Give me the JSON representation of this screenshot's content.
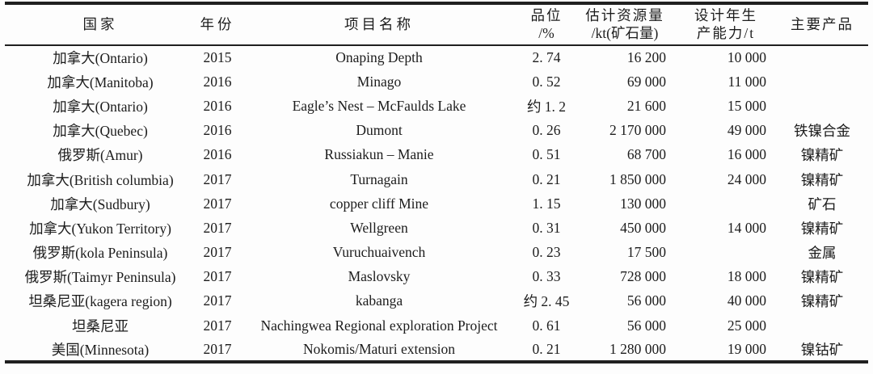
{
  "table": {
    "header": {
      "country": "国家",
      "year": "年份",
      "project": "项目名称",
      "grade_line1": "品位",
      "grade_line2": "/%",
      "resources_line1": "估计资源量",
      "resources_line2": "/kt(矿石量)",
      "capacity_line1": "设计年生",
      "capacity_line2": "产能力/t",
      "product": "主要产品"
    },
    "rows": [
      {
        "country": "加拿大(Ontario)",
        "year": "2015",
        "project": "Onaping Depth",
        "grade": "2. 74",
        "resources": "16 200",
        "capacity": "10 000",
        "product": ""
      },
      {
        "country": "加拿大(Manitoba)",
        "year": "2016",
        "project": "Minago",
        "grade": "0. 52",
        "resources": "69 000",
        "capacity": "11 000",
        "product": ""
      },
      {
        "country": "加拿大(Ontario)",
        "year": "2016",
        "project": "Eagle’s Nest – McFaulds Lake",
        "grade": "约 1. 2",
        "resources": "21 600",
        "capacity": "15 000",
        "product": ""
      },
      {
        "country": "加拿大(Quebec)",
        "year": "2016",
        "project": "Dumont",
        "grade": "0. 26",
        "resources": "2 170 000",
        "capacity": "49 000",
        "product": "铁镍合金"
      },
      {
        "country": "俄罗斯(Amur)",
        "year": "2016",
        "project": "Russiakun – Manie",
        "grade": "0. 51",
        "resources": "68 700",
        "capacity": "16 000",
        "product": "镍精矿"
      },
      {
        "country": "加拿大(British columbia)",
        "year": "2017",
        "project": "Turnagain",
        "grade": "0. 21",
        "resources": "1 850 000",
        "capacity": "24 000",
        "product": "镍精矿"
      },
      {
        "country": "加拿大(Sudbury)",
        "year": "2017",
        "project": "copper cliff Mine",
        "grade": "1. 15",
        "resources": "130 000",
        "capacity": "",
        "product": "矿石"
      },
      {
        "country": "加拿大(Yukon Territory)",
        "year": "2017",
        "project": "Wellgreen",
        "grade": "0. 31",
        "resources": "450 000",
        "capacity": "14 000",
        "product": "镍精矿"
      },
      {
        "country": "俄罗斯(kola Peninsula)",
        "year": "2017",
        "project": "Vuruchuaivench",
        "grade": "0. 23",
        "resources": "17 500",
        "capacity": "",
        "product": "金属"
      },
      {
        "country": "俄罗斯(Taimyr Peninsula)",
        "year": "2017",
        "project": "Maslovsky",
        "grade": "0. 33",
        "resources": "728 000",
        "capacity": "18 000",
        "product": "镍精矿"
      },
      {
        "country": "坦桑尼亚(kagera region)",
        "year": "2017",
        "project": "kabanga",
        "grade": "约 2. 45",
        "resources": "56 000",
        "capacity": "40 000",
        "product": "镍精矿"
      },
      {
        "country": "坦桑尼亚",
        "year": "2017",
        "project": "Nachingwea Regional exploration Project",
        "grade": "0. 61",
        "resources": "56 000",
        "capacity": "25 000",
        "product": ""
      },
      {
        "country": "美国(Minnesota)",
        "year": "2017",
        "project": "Nokomis/Maturi extension",
        "grade": "0. 21",
        "resources": "1 280 000",
        "capacity": "19 000",
        "product": "镍钴矿"
      }
    ]
  }
}
